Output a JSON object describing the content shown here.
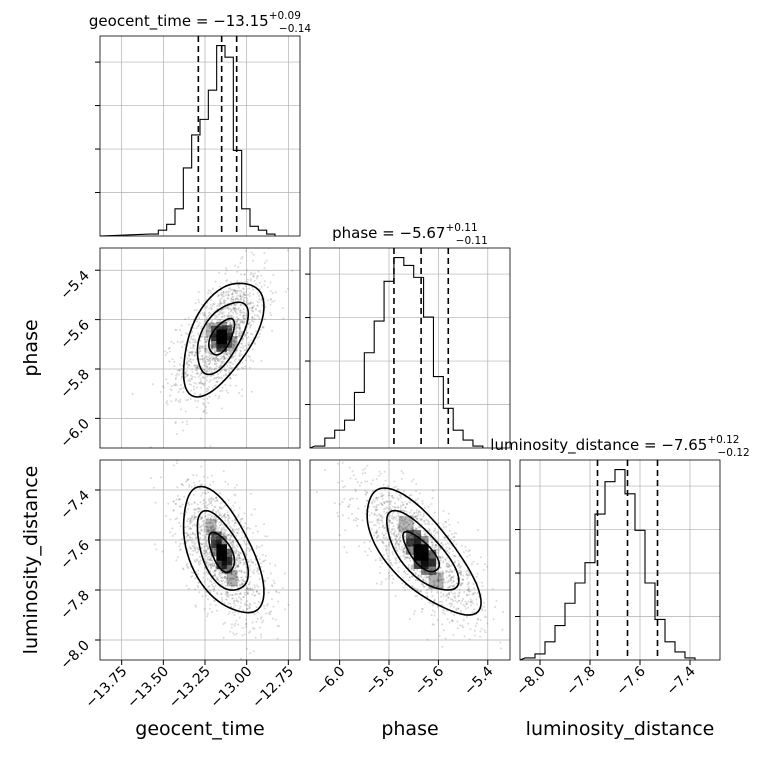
{
  "chart_data": {
    "type": "corner",
    "parameters": [
      {
        "name": "geocent_time",
        "label": "geocent_time",
        "title": "geocent_time = −13.15",
        "median": -13.15,
        "plus": "+0.09",
        "minus": "−0.14",
        "quantiles": [
          -13.29,
          -13.15,
          -13.06
        ],
        "range": [
          -13.88,
          -12.68
        ],
        "ticks": [
          -13.75,
          -13.5,
          -13.25,
          -13.0,
          -12.75
        ],
        "tick_labels": [
          "−13.75",
          "−13.50",
          "−13.25",
          "−13.00",
          "−12.75"
        ]
      },
      {
        "name": "phase",
        "label": "phase",
        "title": "phase = −5.67",
        "median": -5.67,
        "plus": "+0.11",
        "minus": "−0.11",
        "quantiles": [
          -5.78,
          -5.67,
          -5.56
        ],
        "range": [
          -6.12,
          -5.31
        ],
        "ticks": [
          -6.0,
          -5.8,
          -5.6,
          -5.4
        ],
        "tick_labels": [
          "−6.0",
          "−5.8",
          "−5.6",
          "−5.4"
        ]
      },
      {
        "name": "luminosity_distance",
        "label": "luminosity_distance",
        "title": "luminosity_distance = −7.65",
        "median": -7.65,
        "plus": "+0.12",
        "minus": "−0.12",
        "quantiles": [
          -7.77,
          -7.65,
          -7.53
        ],
        "range": [
          -8.08,
          -7.28
        ],
        "ticks": [
          -8.0,
          -7.8,
          -7.6,
          -7.4
        ],
        "tick_labels": [
          "−8.0",
          "−7.8",
          "−7.6",
          "−7.4"
        ]
      }
    ],
    "histograms": {
      "geocent_time": {
        "edges_start": -13.58,
        "bin_width": 0.05,
        "counts": [
          1,
          3,
          6,
          14,
          35,
          52,
          60,
          75,
          98,
          92,
          44,
          14,
          5,
          3,
          1
        ]
      },
      "phase": {
        "edges_start": -6.1,
        "bin_width": 0.04,
        "counts": [
          1,
          5,
          9,
          14,
          28,
          48,
          64,
          84,
          96,
          92,
          86,
          66,
          36,
          20,
          9,
          4,
          1
        ]
      },
      "luminosity_distance": {
        "edges_start": -8.06,
        "bin_width": 0.04,
        "counts": [
          1,
          3,
          9,
          17,
          28,
          38,
          48,
          72,
          88,
          94,
          82,
          64,
          38,
          20,
          9,
          4,
          1
        ]
      }
    },
    "pairs": [
      {
        "x": "geocent_time",
        "y": "phase",
        "corr": 0.55
      },
      {
        "x": "geocent_time",
        "y": "luminosity_distance",
        "corr": -0.55
      },
      {
        "x": "phase",
        "y": "luminosity_distance",
        "corr": -0.72
      }
    ],
    "grid": true,
    "style": {
      "line_color": "#000000",
      "scatter_color": "#555555",
      "grid_color": "#b0b0b0"
    }
  }
}
